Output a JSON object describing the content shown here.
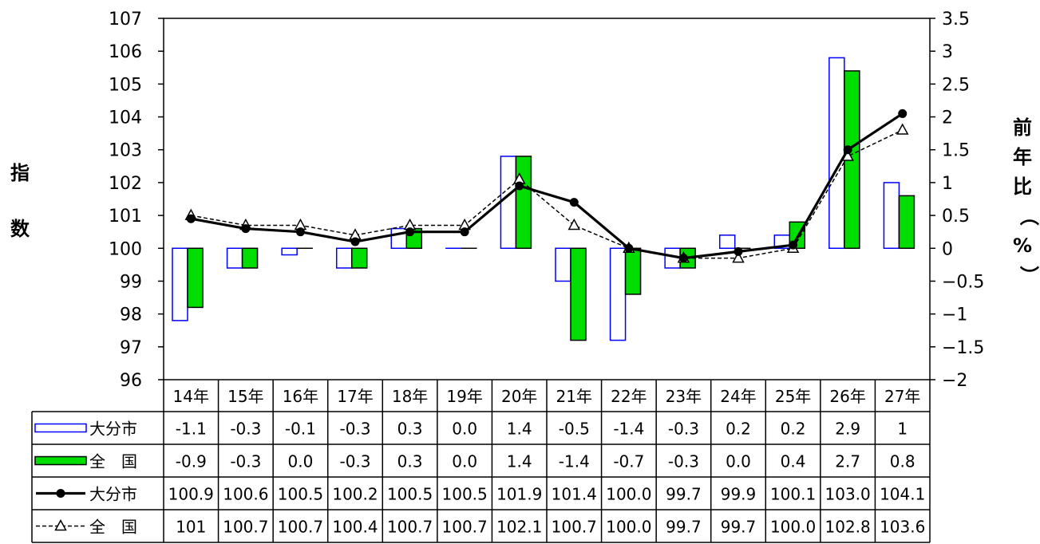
{
  "chart_data": {
    "type": "bar",
    "categories": [
      "14年",
      "15年",
      "16年",
      "17年",
      "18年",
      "19年",
      "20年",
      "21年",
      "22年",
      "23年",
      "24年",
      "25年",
      "26年",
      "27年"
    ],
    "left_axis": {
      "label": "指数",
      "ylim": [
        96,
        107
      ],
      "ticks": [
        "107",
        "106",
        "105",
        "104",
        "103",
        "102",
        "101",
        "100",
        "99",
        "98",
        "97",
        "96"
      ]
    },
    "right_axis": {
      "label": "前年比（%）",
      "ylim": [
        -2,
        3.5
      ],
      "ticks": [
        "3.5",
        "3",
        "2.5",
        "2",
        "1.5",
        "1",
        "0.5",
        "0",
        "−0.5",
        "−1",
        "−1.5",
        "−2"
      ]
    },
    "series": [
      {
        "name": "大分市",
        "kind": "bar",
        "axis": "right",
        "fill": "#ffffff",
        "stroke": "#0000ff",
        "values": [
          -1.1,
          -0.3,
          -0.1,
          -0.3,
          0.3,
          0.0,
          1.4,
          -0.5,
          -1.4,
          -0.3,
          0.2,
          0.2,
          2.9,
          1.0
        ],
        "labels": [
          "-1.1",
          "-0.3",
          "-0.1",
          "-0.3",
          "0.3",
          "0.0",
          "1.4",
          "-0.5",
          "-1.4",
          "-0.3",
          "0.2",
          "0.2",
          "2.9",
          "1"
        ]
      },
      {
        "name": "全　国",
        "kind": "bar",
        "axis": "right",
        "fill": "#00dd00",
        "stroke": "#000000",
        "values": [
          -0.9,
          -0.3,
          0.0,
          -0.3,
          0.3,
          0.0,
          1.4,
          -1.4,
          -0.7,
          -0.3,
          0.0,
          0.4,
          2.7,
          0.8
        ],
        "labels": [
          "-0.9",
          "-0.3",
          "0.0",
          "-0.3",
          "0.3",
          "0.0",
          "1.4",
          "-1.4",
          "-0.7",
          "-0.3",
          "0.0",
          "0.4",
          "2.7",
          "0.8"
        ]
      },
      {
        "name": "大分市",
        "kind": "line",
        "axis": "left",
        "marker": "circle",
        "dash": false,
        "stroke": "#000000",
        "values": [
          100.9,
          100.6,
          100.5,
          100.2,
          100.5,
          100.5,
          101.9,
          101.4,
          100.0,
          99.7,
          99.9,
          100.1,
          103.0,
          104.1
        ],
        "labels": [
          "100.9",
          "100.6",
          "100.5",
          "100.2",
          "100.5",
          "100.5",
          "101.9",
          "101.4",
          "100.0",
          "99.7",
          "99.9",
          "100.1",
          "103.0",
          "104.1"
        ]
      },
      {
        "name": "全　国",
        "kind": "line",
        "axis": "left",
        "marker": "triangle",
        "dash": true,
        "stroke": "#000000",
        "values": [
          101,
          100.7,
          100.7,
          100.4,
          100.7,
          100.7,
          102.1,
          100.7,
          100.0,
          99.7,
          99.7,
          100.0,
          102.8,
          103.6
        ],
        "labels": [
          "101",
          "100.7",
          "100.7",
          "100.4",
          "100.7",
          "100.7",
          "102.1",
          "100.7",
          "100.0",
          "99.7",
          "99.7",
          "100.0",
          "102.8",
          "103.6"
        ]
      }
    ],
    "grid": false,
    "legend": "data-table"
  }
}
